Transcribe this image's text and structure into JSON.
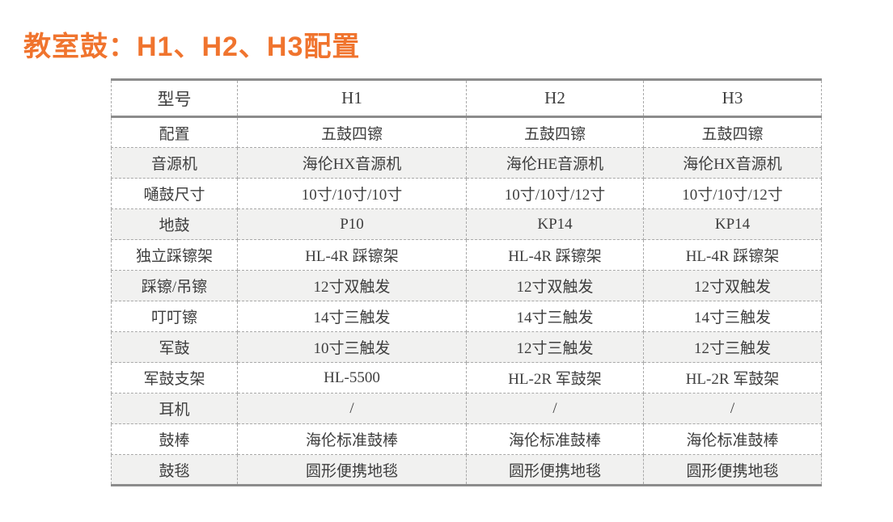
{
  "title": "教室鼓：H1、H2、H3配置",
  "colors": {
    "accent_orange": "#f0742e",
    "border_strong": "#8c8c8c",
    "border_dashed": "#a9a9a9",
    "row_alt_bg": "#f1f1f0",
    "text": "#3e3e3e"
  },
  "table": {
    "headers": {
      "model": "型号",
      "h1": "H1",
      "h2": "H2",
      "h3": "H3"
    },
    "rows": [
      {
        "label": "配置",
        "h1": "五鼓四镲",
        "h2": "五鼓四镲",
        "h3": "五鼓四镲"
      },
      {
        "label": "音源机",
        "h1": "海伦HX音源机",
        "h2": "海伦HE音源机",
        "h3": "海伦HX音源机"
      },
      {
        "label": "嗵鼓尺寸",
        "h1": "10寸/10寸/10寸",
        "h2": "10寸/10寸/12寸",
        "h3": "10寸/10寸/12寸"
      },
      {
        "label": "地鼓",
        "h1": "P10",
        "h2": "KP14",
        "h3": "KP14"
      },
      {
        "label": "独立踩镲架",
        "h1": "HL-4R 踩镲架",
        "h2": "HL-4R 踩镲架",
        "h3": "HL-4R 踩镲架"
      },
      {
        "label": "踩镲/吊镲",
        "h1": "12寸双触发",
        "h2": "12寸双触发",
        "h3": "12寸双触发"
      },
      {
        "label": "叮叮镲",
        "h1": "14寸三触发",
        "h2": "14寸三触发",
        "h3": "14寸三触发"
      },
      {
        "label": "军鼓",
        "h1": "10寸三触发",
        "h2": "12寸三触发",
        "h3": "12寸三触发"
      },
      {
        "label": "军鼓支架",
        "h1": "HL-5500",
        "h2": "HL-2R 军鼓架",
        "h3": "HL-2R 军鼓架"
      },
      {
        "label": "耳机",
        "h1": "/",
        "h2": "/",
        "h3": "/"
      },
      {
        "label": "鼓棒",
        "h1": "海伦标准鼓棒",
        "h2": "海伦标准鼓棒",
        "h3": "海伦标准鼓棒"
      },
      {
        "label": "鼓毯",
        "h1": "圆形便携地毯",
        "h2": "圆形便携地毯",
        "h3": "圆形便携地毯"
      }
    ]
  }
}
